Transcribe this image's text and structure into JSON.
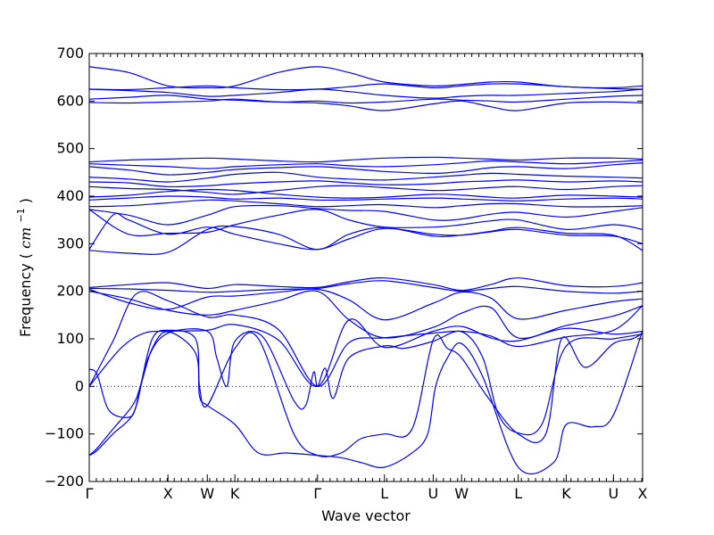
{
  "chart_data": {
    "type": "line",
    "title": "",
    "xlabel": "Wave vector",
    "ylabel": "Frequency (cm⁻¹)",
    "ylabel_main": "Frequency",
    "ylabel_unit_base": "cm",
    "ylabel_unit_exp": "−1",
    "ylim": [
      -200,
      700
    ],
    "yticks": [
      -200,
      -100,
      0,
      100,
      200,
      300,
      400,
      500,
      600,
      700
    ],
    "grid": false,
    "line_color": "#0000ff",
    "zero_line": 0,
    "k_path": [
      {
        "label": "Γ",
        "x": 0.0
      },
      {
        "label": "X",
        "x": 1.0
      },
      {
        "label": "W",
        "x": 1.5
      },
      {
        "label": "K",
        "x": 1.85
      },
      {
        "label": "Γ",
        "x": 2.9
      },
      {
        "label": "L",
        "x": 3.75
      },
      {
        "label": "U",
        "x": 4.37
      },
      {
        "label": "W",
        "x": 4.73
      },
      {
        "label": "L",
        "x": 5.45
      },
      {
        "label": "K",
        "x": 6.06
      },
      {
        "label": "U",
        "x": 6.66
      },
      {
        "label": "X",
        "x": 7.03
      }
    ],
    "minor_tick_step": 0.09,
    "series": [
      {
        "x": [
          0,
          0.5,
          1.0,
          1.5,
          1.85,
          2.4,
          2.9,
          3.3,
          3.75,
          4.37,
          4.73,
          5.1,
          5.45,
          6.06,
          6.66,
          7.03
        ],
        "values": [
          672,
          660,
          632,
          628,
          632,
          660,
          672,
          660,
          640,
          632,
          635,
          640,
          640,
          630,
          628,
          632
        ]
      },
      {
        "x": [
          0,
          0.5,
          1.0,
          1.5,
          1.85,
          2.4,
          2.9,
          3.3,
          3.75,
          4.37,
          4.73,
          5.1,
          5.45,
          6.06,
          6.66,
          7.03
        ],
        "values": [
          625,
          624,
          628,
          632,
          628,
          624,
          625,
          630,
          636,
          628,
          632,
          636,
          636,
          630,
          626,
          625
        ]
      },
      {
        "x": [
          0,
          0.5,
          1.0,
          1.5,
          1.85,
          2.4,
          2.9,
          3.3,
          3.75,
          4.37,
          4.73,
          5.1,
          5.45,
          6.06,
          6.66,
          7.03
        ],
        "values": [
          625,
          622,
          618,
          610,
          612,
          618,
          625,
          620,
          612,
          606,
          610,
          612,
          612,
          616,
          620,
          625
        ]
      },
      {
        "x": [
          0,
          0.5,
          1.0,
          1.5,
          1.85,
          2.4,
          2.9,
          3.3,
          3.75,
          4.37,
          4.73,
          5.1,
          5.45,
          6.06,
          6.66,
          7.03
        ],
        "values": [
          604,
          608,
          612,
          604,
          602,
          598,
          600,
          596,
          598,
          604,
          602,
          600,
          598,
          604,
          610,
          612
        ]
      },
      {
        "x": [
          0,
          0.5,
          1.0,
          1.5,
          1.85,
          2.4,
          2.9,
          3.3,
          3.75,
          4.37,
          4.73,
          5.1,
          5.45,
          6.06,
          6.66,
          7.03
        ],
        "values": [
          597,
          596,
          598,
          600,
          604,
          598,
          596,
          590,
          580,
          594,
          600,
          588,
          580,
          596,
          598,
          596
        ]
      },
      {
        "x": [
          0,
          0.5,
          1.0,
          1.5,
          1.85,
          2.4,
          2.9,
          3.3,
          3.75,
          4.37,
          4.73,
          5.1,
          5.45,
          6.06,
          6.66,
          7.03
        ],
        "values": [
          472,
          476,
          478,
          480,
          478,
          474,
          472,
          476,
          480,
          482,
          480,
          478,
          476,
          480,
          480,
          478
        ]
      },
      {
        "x": [
          0,
          0.5,
          1.0,
          1.5,
          1.85,
          2.4,
          2.9,
          3.3,
          3.75,
          4.37,
          4.73,
          5.1,
          5.45,
          6.06,
          6.66,
          7.03
        ],
        "values": [
          468,
          465,
          462,
          458,
          462,
          466,
          468,
          464,
          462,
          466,
          470,
          474,
          472,
          468,
          472,
          476
        ]
      },
      {
        "x": [
          0,
          0.5,
          1.0,
          1.5,
          1.85,
          2.4,
          2.9,
          3.3,
          3.75,
          4.37,
          4.73,
          5.1,
          5.45,
          6.06,
          6.66,
          7.03
        ],
        "values": [
          462,
          455,
          445,
          450,
          456,
          460,
          462,
          458,
          452,
          448,
          452,
          460,
          462,
          458,
          466,
          470
        ]
      },
      {
        "x": [
          0,
          0.5,
          1.0,
          1.5,
          1.85,
          2.4,
          2.9,
          3.3,
          3.75,
          4.37,
          4.73,
          5.1,
          5.45,
          6.06,
          6.66,
          7.03
        ],
        "values": [
          440,
          436,
          430,
          438,
          446,
          450,
          440,
          436,
          434,
          440,
          444,
          448,
          446,
          442,
          440,
          438
        ]
      },
      {
        "x": [
          0,
          0.5,
          1.0,
          1.5,
          1.85,
          2.4,
          2.9,
          3.3,
          3.75,
          4.37,
          4.73,
          5.1,
          5.45,
          6.06,
          6.66,
          7.03
        ],
        "values": [
          430,
          428,
          420,
          422,
          426,
          430,
          432,
          428,
          424,
          426,
          430,
          432,
          434,
          430,
          432,
          430
        ]
      },
      {
        "x": [
          0,
          0.5,
          1.0,
          1.5,
          1.85,
          2.4,
          2.9,
          3.3,
          3.75,
          4.37,
          4.73,
          5.1,
          5.45,
          6.06,
          6.66,
          7.03
        ],
        "values": [
          420,
          416,
          414,
          408,
          404,
          412,
          420,
          422,
          418,
          412,
          414,
          418,
          420,
          414,
          420,
          422
        ]
      },
      {
        "x": [
          0,
          0.5,
          1.0,
          1.5,
          1.85,
          2.4,
          2.9,
          3.3,
          3.75,
          4.37,
          4.73,
          5.1,
          5.45,
          6.06,
          6.66,
          7.03
        ],
        "values": [
          398,
          402,
          410,
          414,
          412,
          404,
          398,
          396,
          398,
          404,
          402,
          398,
          396,
          402,
          400,
          398
        ]
      },
      {
        "x": [
          0,
          0.5,
          1.0,
          1.5,
          1.85,
          2.4,
          2.9,
          3.3,
          3.75,
          4.37,
          4.73,
          5.1,
          5.45,
          6.06,
          6.66,
          7.03
        ],
        "values": [
          392,
          396,
          400,
          398,
          394,
          396,
          392,
          392,
          394,
          396,
          394,
          392,
          390,
          394,
          396,
          394
        ]
      },
      {
        "x": [
          0,
          0.5,
          1.0,
          1.5,
          1.85,
          2.4,
          2.9,
          3.3,
          3.75,
          4.37,
          4.73,
          5.1,
          5.45,
          6.06,
          6.66,
          7.03
        ],
        "values": [
          378,
          380,
          386,
          392,
          390,
          384,
          378,
          380,
          382,
          376,
          380,
          384,
          384,
          378,
          378,
          380
        ]
      },
      {
        "x": [
          0,
          0.5,
          1.0,
          1.5,
          1.85,
          2.4,
          2.9,
          3.3,
          3.75,
          4.37,
          4.73,
          5.1,
          5.45,
          6.06,
          6.66,
          7.03
        ],
        "values": [
          372,
          360,
          340,
          360,
          378,
          380,
          374,
          370,
          368,
          350,
          352,
          362,
          366,
          356,
          368,
          376
        ]
      },
      {
        "x": [
          0,
          0.5,
          1.0,
          1.5,
          1.85,
          2.4,
          2.9,
          3.3,
          3.75,
          4.37,
          4.73,
          5.1,
          5.45,
          6.06,
          6.66,
          7.03
        ],
        "values": [
          372,
          320,
          322,
          324,
          340,
          360,
          372,
          350,
          335,
          335,
          340,
          348,
          350,
          330,
          340,
          330
        ]
      },
      {
        "x": [
          0,
          0.3,
          0.5,
          1.0,
          1.5,
          1.85,
          2.4,
          2.9,
          3.3,
          3.75,
          4.37,
          4.73,
          5.1,
          5.45,
          6.06,
          6.66,
          7.03
        ],
        "values": [
          288,
          360,
          350,
          320,
          335,
          320,
          300,
          288,
          310,
          332,
          320,
          318,
          325,
          330,
          318,
          316,
          300
        ]
      },
      {
        "x": [
          0,
          0.5,
          1.0,
          1.5,
          1.85,
          2.4,
          2.9,
          3.3,
          3.75,
          4.37,
          4.73,
          5.1,
          5.45,
          6.06,
          6.66,
          7.03
        ],
        "values": [
          286,
          280,
          282,
          330,
          336,
          320,
          288,
          320,
          334,
          316,
          318,
          326,
          334,
          322,
          318,
          286
        ]
      },
      {
        "x": [
          0,
          0.5,
          1.0,
          1.5,
          1.85,
          2.4,
          2.9,
          3.3,
          3.75,
          4.37,
          4.73,
          5.1,
          5.45,
          6.06,
          6.66,
          7.03
        ],
        "values": [
          208,
          214,
          218,
          206,
          214,
          210,
          208,
          220,
          228,
          214,
          202,
          214,
          228,
          212,
          210,
          218
        ]
      },
      {
        "x": [
          0,
          0.5,
          1.0,
          1.5,
          1.85,
          2.4,
          2.9,
          3.3,
          3.75,
          4.37,
          4.73,
          5.1,
          5.45,
          6.06,
          6.66,
          7.03
        ],
        "values": [
          206,
          205,
          202,
          198,
          200,
          204,
          206,
          216,
          222,
          208,
          200,
          206,
          210,
          200,
          196,
          200
        ]
      },
      {
        "x": [
          0,
          0.5,
          1.0,
          1.5,
          1.85,
          2.4,
          2.9,
          3.3,
          3.75,
          4.37,
          4.73,
          5.1,
          5.45,
          6.06,
          6.66,
          7.03
        ],
        "values": [
          204,
          176,
          162,
          188,
          190,
          198,
          204,
          182,
          140,
          175,
          198,
          186,
          142,
          160,
          178,
          184
        ]
      },
      {
        "x": [
          0,
          0.5,
          1.0,
          1.5,
          1.85,
          2.4,
          2.9,
          3.3,
          3.75,
          4.37,
          4.73,
          5.1,
          5.45,
          6.06,
          6.66,
          7.03
        ],
        "values": [
          200,
          184,
          160,
          150,
          160,
          180,
          200,
          140,
          102,
          124,
          154,
          166,
          102,
          128,
          148,
          170
        ]
      },
      {
        "x": [
          0,
          0.3,
          0.6,
          1.0,
          1.5,
          1.85,
          2.4,
          2.9,
          3.3,
          3.75,
          4.37,
          4.73,
          5.1,
          5.45,
          6.06,
          6.66,
          7.03
        ],
        "values": [
          0,
          95,
          195,
          180,
          146,
          150,
          120,
          0,
          92,
          102,
          112,
          116,
          106,
          84,
          104,
          118,
          170
        ]
      },
      {
        "x": [
          0,
          0.4,
          0.7,
          1.0,
          1.5,
          1.85,
          2.4,
          2.9,
          3.3,
          3.75,
          4.37,
          4.73,
          5.1,
          5.45,
          6.06,
          6.66,
          7.03
        ],
        "values": [
          0,
          80,
          112,
          116,
          118,
          130,
          98,
          0,
          140,
          82,
          116,
          126,
          102,
          96,
          122,
          110,
          116
        ]
      },
      {
        "x": [
          0,
          0.1,
          0.3,
          0.55,
          0.65,
          0.8,
          1.0,
          1.35,
          1.4,
          1.5,
          1.85,
          2.15,
          2.5,
          2.9,
          3.2,
          3.45,
          3.75,
          4.1,
          4.3,
          4.4,
          4.55,
          4.73,
          5.0,
          5.45,
          5.9,
          6.06,
          6.4,
          6.66,
          7.03
        ],
        "values": [
          -145,
          -130,
          -90,
          -40,
          0,
          80,
          115,
          70,
          -20,
          -40,
          -80,
          -140,
          -140,
          -145,
          -150,
          -160,
          -170,
          -140,
          -100,
          0,
          60,
          90,
          20,
          -170,
          -160,
          -80,
          -85,
          -60,
          118
        ]
      },
      {
        "x": [
          0,
          0.1,
          0.3,
          0.55,
          0.65,
          0.8,
          1.0,
          1.35,
          1.4,
          1.5,
          1.85,
          2.15,
          2.6,
          2.9,
          3.2,
          3.45,
          3.75,
          4.1,
          4.37,
          4.55,
          4.73,
          5.05,
          5.45,
          5.8,
          6.0,
          6.3,
          6.66,
          6.9,
          7.03
        ],
        "values": [
          -145,
          -135,
          -100,
          -60,
          0,
          100,
          118,
          100,
          0,
          -40,
          80,
          100,
          -100,
          -145,
          -140,
          -110,
          -100,
          -90,
          98,
          80,
          60,
          -20,
          -100,
          -100,
          100,
          40,
          90,
          100,
          112
        ]
      },
      {
        "x": [
          0,
          0.1,
          0.25,
          0.5,
          0.6,
          0.75,
          1.0,
          1.5,
          1.62,
          1.75,
          1.85,
          2.2,
          2.6,
          2.75,
          2.85,
          2.9,
          3.0,
          3.1,
          3.3,
          3.75,
          4.0,
          4.37,
          4.73,
          5.0,
          5.2,
          5.45,
          5.75,
          6.06,
          6.66,
          7.03
        ],
        "values": [
          36,
          25,
          -50,
          -65,
          -40,
          60,
          112,
          116,
          60,
          0,
          95,
          105,
          -30,
          -40,
          30,
          0,
          38,
          -25,
          60,
          85,
          80,
          95,
          115,
          60,
          -60,
          -98,
          -80,
          85,
          100,
          110
        ]
      }
    ]
  }
}
